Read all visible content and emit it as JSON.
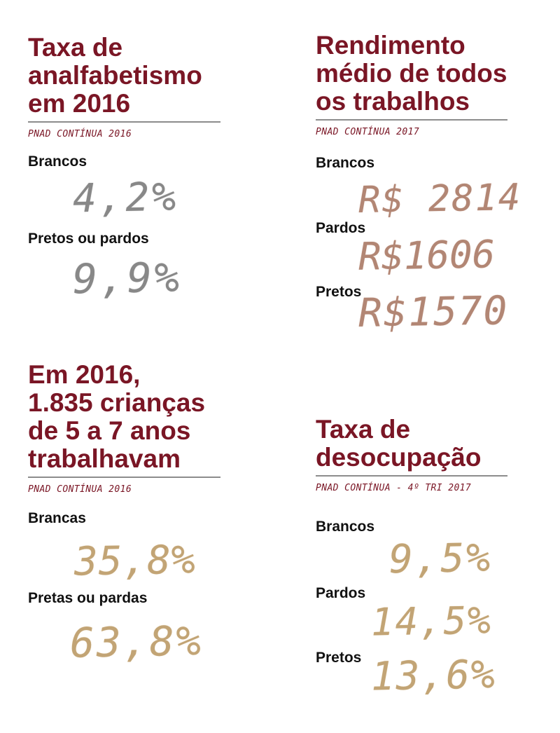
{
  "panels": [
    {
      "title": "Taxa de\nanalfabetismo\nem 2016",
      "source": "PNAD CONTÍNUA 2016",
      "rows": [
        {
          "label": "Brancos",
          "value": "4,2%"
        },
        {
          "label": "Pretos ou pardos",
          "value": "9,9%"
        }
      ]
    },
    {
      "title": "Rendimento\nmédio de todos\nos trabalhos",
      "source": "PNAD CONTÍNUA 2017",
      "rows": [
        {
          "label": "Brancos",
          "value": "R$ 2814"
        },
        {
          "label": "Pardos",
          "value": "R$1606"
        },
        {
          "label": "Pretos",
          "value": "R$1570"
        }
      ]
    },
    {
      "title": "Em 2016,\n1.835 crianças\nde 5 a 7 anos\ntrabalhavam",
      "source": "PNAD CONTÍNUA 2016",
      "rows": [
        {
          "label": "Brancas",
          "value": "35,8%"
        },
        {
          "label": "Pretas ou pardas",
          "value": "63,8%"
        }
      ]
    },
    {
      "title": "Taxa de\ndesocupação",
      "source": "PNAD CONTÍNUA - 4º TRI 2017",
      "rows": [
        {
          "label": "Brancos",
          "value": "9,5%"
        },
        {
          "label": "Pardos",
          "value": "14,5%"
        },
        {
          "label": "Pretos",
          "value": "13,6%"
        }
      ]
    }
  ],
  "colors": {
    "title": "#7a1625",
    "rule": "#8c8c8c",
    "hand_grey": "#6f6f6f",
    "hand_brown": "#a5715c",
    "hand_gold": "#b8955d"
  }
}
